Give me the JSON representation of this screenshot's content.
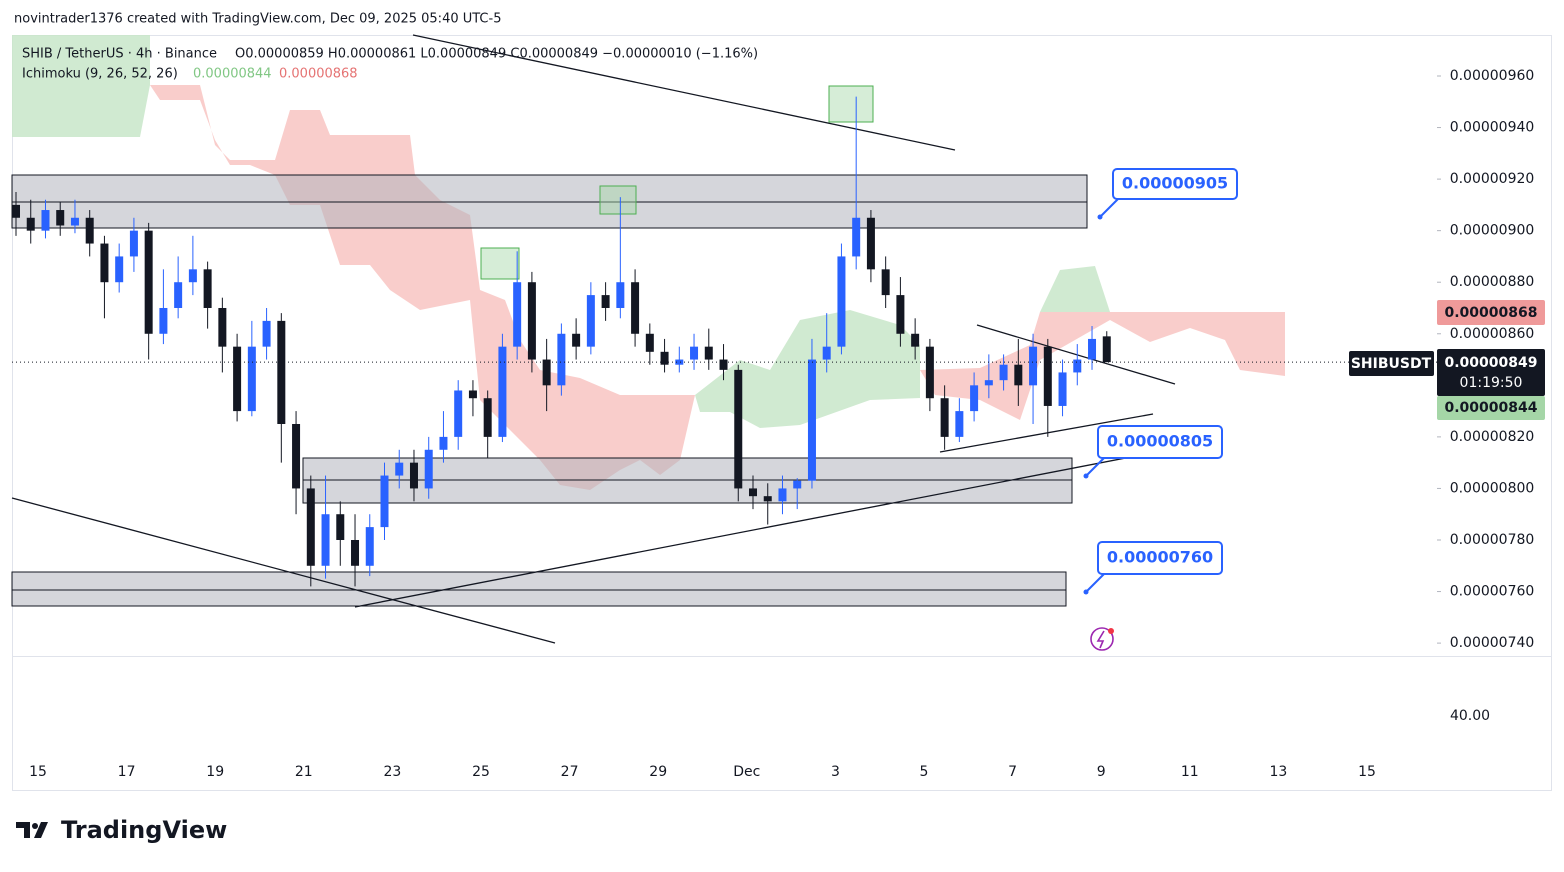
{
  "chart_data": {
    "type": "candlestick",
    "credit": "novintrader1376 created with TradingView.com, Dec 09, 2025 05:40 UTC-5",
    "symbol": "SHIB / TetherUS · 4h · Binance",
    "ohlc_header": "O0.00000859 H0.00000861 L0.00000849 C0.00000849 −0.00000010 (−1.16%)",
    "indicator": "Ichimoku (9, 26, 52, 26)",
    "indicator_values": [
      "0.00000844",
      "0.00000868"
    ],
    "up_color": "#2962ff",
    "down_color": "#131722",
    "ohlc": [
      [
        9.1e-06,
        9.15e-06,
        8.98e-06,
        9.05e-06
      ],
      [
        9.05e-06,
        9.12e-06,
        8.95e-06,
        9e-06
      ],
      [
        9e-06,
        9.12e-06,
        8.97e-06,
        9.08e-06
      ],
      [
        9.08e-06,
        9.11e-06,
        8.98e-06,
        9.02e-06
      ],
      [
        9.02e-06,
        9.12e-06,
        8.99e-06,
        9.05e-06
      ],
      [
        9.05e-06,
        9.08e-06,
        8.9e-06,
        8.95e-06
      ],
      [
        8.95e-06,
        8.98e-06,
        8.66e-06,
        8.8e-06
      ],
      [
        8.8e-06,
        8.95e-06,
        8.76e-06,
        8.9e-06
      ],
      [
        8.9e-06,
        9.05e-06,
        8.84e-06,
        9e-06
      ],
      [
        9e-06,
        9.03e-06,
        8.5e-06,
        8.6e-06
      ],
      [
        8.6e-06,
        8.85e-06,
        8.56e-06,
        8.7e-06
      ],
      [
        8.7e-06,
        8.9e-06,
        8.66e-06,
        8.8e-06
      ],
      [
        8.8e-06,
        8.98e-06,
        8.75e-06,
        8.85e-06
      ],
      [
        8.85e-06,
        8.88e-06,
        8.62e-06,
        8.7e-06
      ],
      [
        8.7e-06,
        8.74e-06,
        8.45e-06,
        8.55e-06
      ],
      [
        8.55e-06,
        8.6e-06,
        8.26e-06,
        8.3e-06
      ],
      [
        8.3e-06,
        8.65e-06,
        8.28e-06,
        8.55e-06
      ],
      [
        8.55e-06,
        8.7e-06,
        8.5e-06,
        8.65e-06
      ],
      [
        8.65e-06,
        8.68e-06,
        8.1e-06,
        8.25e-06
      ],
      [
        8.25e-06,
        8.3e-06,
        7.9e-06,
        8e-06
      ],
      [
        8e-06,
        8.05e-06,
        7.62e-06,
        7.7e-06
      ],
      [
        7.7e-06,
        8.05e-06,
        7.65e-06,
        7.9e-06
      ],
      [
        7.9e-06,
        7.95e-06,
        7.7e-06,
        7.8e-06
      ],
      [
        7.8e-06,
        7.9e-06,
        7.62e-06,
        7.7e-06
      ],
      [
        7.7e-06,
        7.9e-06,
        7.66e-06,
        7.85e-06
      ],
      [
        7.85e-06,
        8.1e-06,
        7.8e-06,
        8.05e-06
      ],
      [
        8.05e-06,
        8.15e-06,
        8e-06,
        8.1e-06
      ],
      [
        8.1e-06,
        8.15e-06,
        7.95e-06,
        8e-06
      ],
      [
        8e-06,
        8.2e-06,
        7.96e-06,
        8.15e-06
      ],
      [
        8.15e-06,
        8.3e-06,
        8.1e-06,
        8.2e-06
      ],
      [
        8.2e-06,
        8.42e-06,
        8.15e-06,
        8.38e-06
      ],
      [
        8.38e-06,
        8.42e-06,
        8.28e-06,
        8.35e-06
      ],
      [
        8.35e-06,
        8.38e-06,
        8.12e-06,
        8.2e-06
      ],
      [
        8.2e-06,
        8.6e-06,
        8.18e-06,
        8.55e-06
      ],
      [
        8.55e-06,
        8.92e-06,
        8.5e-06,
        8.8e-06
      ],
      [
        8.8e-06,
        8.84e-06,
        8.45e-06,
        8.5e-06
      ],
      [
        8.5e-06,
        8.58e-06,
        8.3e-06,
        8.4e-06
      ],
      [
        8.4e-06,
        8.64e-06,
        8.36e-06,
        8.6e-06
      ],
      [
        8.6e-06,
        8.66e-06,
        8.5e-06,
        8.55e-06
      ],
      [
        8.55e-06,
        8.8e-06,
        8.52e-06,
        8.75e-06
      ],
      [
        8.75e-06,
        8.8e-06,
        8.65e-06,
        8.7e-06
      ],
      [
        8.7e-06,
        9.13e-06,
        8.66e-06,
        8.8e-06
      ],
      [
        8.8e-06,
        8.85e-06,
        8.55e-06,
        8.6e-06
      ],
      [
        8.6e-06,
        8.64e-06,
        8.48e-06,
        8.53e-06
      ],
      [
        8.53e-06,
        8.58e-06,
        8.45e-06,
        8.48e-06
      ],
      [
        8.48e-06,
        8.55e-06,
        8.45e-06,
        8.5e-06
      ],
      [
        8.5e-06,
        8.6e-06,
        8.46e-06,
        8.55e-06
      ],
      [
        8.55e-06,
        8.62e-06,
        8.46e-06,
        8.5e-06
      ],
      [
        8.5e-06,
        8.56e-06,
        8.42e-06,
        8.46e-06
      ],
      [
        8.46e-06,
        8.48e-06,
        7.95e-06,
        8e-06
      ],
      [
        8e-06,
        8.05e-06,
        7.92e-06,
        7.97e-06
      ],
      [
        7.97e-06,
        8.02e-06,
        7.86e-06,
        7.95e-06
      ],
      [
        7.95e-06,
        8.05e-06,
        7.9e-06,
        8e-06
      ],
      [
        8e-06,
        8.04e-06,
        7.92e-06,
        8.03e-06
      ],
      [
        8.03e-06,
        8.58e-06,
        8e-06,
        8.5e-06
      ],
      [
        8.5e-06,
        8.68e-06,
        8.45e-06,
        8.55e-06
      ],
      [
        8.55e-06,
        8.95e-06,
        8.52e-06,
        8.9e-06
      ],
      [
        8.9e-06,
        9.52e-06,
        8.85e-06,
        9.05e-06
      ],
      [
        9.05e-06,
        9.08e-06,
        8.8e-06,
        8.85e-06
      ],
      [
        8.85e-06,
        8.9e-06,
        8.7e-06,
        8.75e-06
      ],
      [
        8.75e-06,
        8.82e-06,
        8.55e-06,
        8.6e-06
      ],
      [
        8.6e-06,
        8.66e-06,
        8.5e-06,
        8.55e-06
      ],
      [
        8.55e-06,
        8.58e-06,
        8.3e-06,
        8.35e-06
      ],
      [
        8.35e-06,
        8.4e-06,
        8.15e-06,
        8.2e-06
      ],
      [
        8.2e-06,
        8.35e-06,
        8.18e-06,
        8.3e-06
      ],
      [
        8.3e-06,
        8.45e-06,
        8.26e-06,
        8.4e-06
      ],
      [
        8.4e-06,
        8.52e-06,
        8.35e-06,
        8.42e-06
      ],
      [
        8.42e-06,
        8.52e-06,
        8.38e-06,
        8.48e-06
      ],
      [
        8.48e-06,
        8.58e-06,
        8.32e-06,
        8.4e-06
      ],
      [
        8.4e-06,
        8.6e-06,
        8.25e-06,
        8.55e-06
      ],
      [
        8.55e-06,
        8.58e-06,
        8.2e-06,
        8.32e-06
      ],
      [
        8.32e-06,
        8.5e-06,
        8.28e-06,
        8.45e-06
      ],
      [
        8.45e-06,
        8.56e-06,
        8.4e-06,
        8.5e-06
      ],
      [
        8.5e-06,
        8.63e-06,
        8.46e-06,
        8.58e-06
      ],
      [
        8.59e-06,
        8.61e-06,
        8.49e-06,
        8.49e-06
      ]
    ],
    "ylim": [
      7.35e-06,
      9.759e-06
    ],
    "yticks": [
      {
        "value": 9.6e-06,
        "label": "0.00000960"
      },
      {
        "value": 9.4e-06,
        "label": "0.00000940"
      },
      {
        "value": 9.2e-06,
        "label": "0.00000920"
      },
      {
        "value": 9e-06,
        "label": "0.00000900"
      },
      {
        "value": 8.8e-06,
        "label": "0.00000880"
      },
      {
        "value": 8.6e-06,
        "label": "0.00000860"
      },
      {
        "value": 8.2e-06,
        "label": "0.00000820"
      },
      {
        "value": 8e-06,
        "label": "0.00000800"
      },
      {
        "value": 7.8e-06,
        "label": "0.00000780"
      },
      {
        "value": 7.6e-06,
        "label": "0.00000760"
      },
      {
        "value": 7.4e-06,
        "label": "0.00000740"
      }
    ],
    "xticks": [
      "15",
      "17",
      "19",
      "21",
      "23",
      "25",
      "27",
      "29",
      "Dec",
      "3",
      "5",
      "7",
      "9",
      "11",
      "13",
      "15"
    ],
    "callouts": [
      "0.00000905",
      "0.00000805",
      "0.00000760"
    ],
    "price_labels": {
      "cloud_top": "0.00000868",
      "symbol": "SHIBUSDT",
      "last": "0.00000849",
      "countdown": "01:19:50",
      "cloud_bottom": "0.00000844"
    },
    "lower_pane_label": "40.00",
    "brand": "TradingView"
  }
}
